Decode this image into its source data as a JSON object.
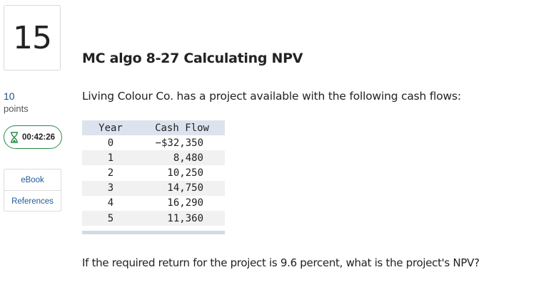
{
  "question_number": "15",
  "title": "MC algo 8-27 Calculating NPV",
  "points": {
    "value": "10",
    "label": "points"
  },
  "timer": {
    "text": "00:42:26",
    "icon": "hourglass-icon",
    "color": "#2a8c4c"
  },
  "side_links": [
    {
      "label": "eBook"
    },
    {
      "label": "References"
    }
  ],
  "intro_text": "Living Colour Co. has a project available with the following cash flows:",
  "cash_flow_table": {
    "headers": [
      "Year",
      "Cash Flow"
    ],
    "rows": [
      [
        "0",
        "−$32,350"
      ],
      [
        "1",
        "8,480"
      ],
      [
        "2",
        "10,250"
      ],
      [
        "3",
        "14,750"
      ],
      [
        "4",
        "16,290"
      ],
      [
        "5",
        "11,360"
      ]
    ]
  },
  "question_text": "If the required return for the project is 9.6 percent, what is the project's NPV?"
}
